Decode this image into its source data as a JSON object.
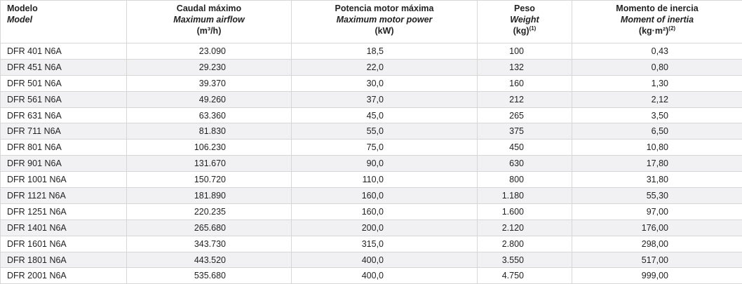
{
  "table": {
    "header": [
      {
        "title": "Modelo",
        "subtitle": "Model"
      },
      {
        "title": "Caudal máximo",
        "subtitle": "Maximum airflow",
        "unit": "(m³/h)"
      },
      {
        "title": "Potencia motor máxima",
        "subtitle": "Maximum motor power",
        "unit": "(kW)"
      },
      {
        "title": "Peso",
        "subtitle": "Weight",
        "unit": "(kg)",
        "note": "(1)"
      },
      {
        "title": "Momento de inercia",
        "subtitle": "Moment of inertia",
        "unit": "(kg·m²)",
        "note": "(2)"
      }
    ],
    "rows": [
      [
        "DFR 401 N6A",
        "23.090",
        "18,5",
        "100",
        "0,43"
      ],
      [
        "DFR 451 N6A",
        "29.230",
        "22,0",
        "132",
        "0,80"
      ],
      [
        "DFR 501 N6A",
        "39.370",
        "30,0",
        "160",
        "1,30"
      ],
      [
        "DFR 561 N6A",
        "49.260",
        "37,0",
        "212",
        "2,12"
      ],
      [
        "DFR 631 N6A",
        "63.360",
        "45,0",
        "265",
        "3,50"
      ],
      [
        "DFR 711 N6A",
        "81.830",
        "55,0",
        "375",
        "6,50"
      ],
      [
        "DFR 801 N6A",
        "106.230",
        "75,0",
        "450",
        "10,80"
      ],
      [
        "DFR 901 N6A",
        "131.670",
        "90,0",
        "630",
        "17,80"
      ],
      [
        "DFR 1001 N6A",
        "150.720",
        "110,0",
        "800",
        "31,80"
      ],
      [
        "DFR 1121 N6A",
        "181.890",
        "160,0",
        "1.180",
        "55,30"
      ],
      [
        "DFR 1251 N6A",
        "220.235",
        "160,0",
        "1.600",
        "97,00"
      ],
      [
        "DFR 1401 N6A",
        "265.680",
        "200,0",
        "2.120",
        "176,00"
      ],
      [
        "DFR 1601 N6A",
        "343.730",
        "315,0",
        "2.800",
        "298,00"
      ],
      [
        "DFR 1801 N6A",
        "443.520",
        "400,0",
        "3.550",
        "517,00"
      ],
      [
        "DFR 2001 N6A",
        "535.680",
        "400,0",
        "4.750",
        "999,00"
      ]
    ]
  }
}
